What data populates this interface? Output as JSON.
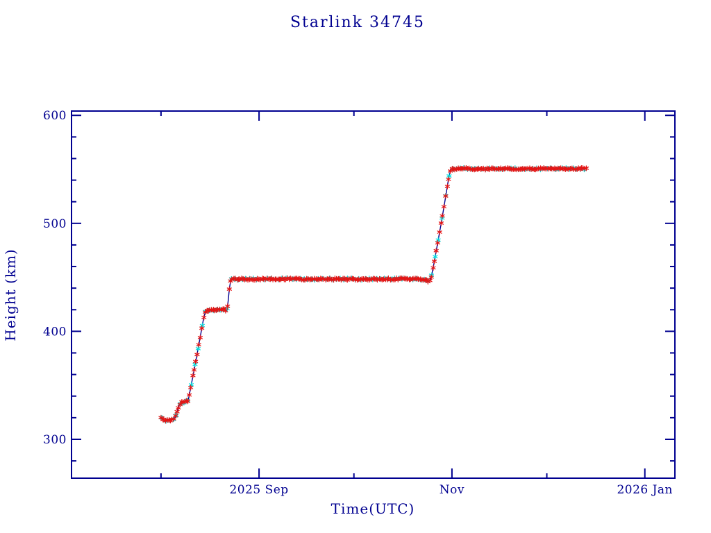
{
  "chart_data": {
    "type": "scatter",
    "title": "Starlink 34745",
    "xlabel": "Time(UTC)",
    "ylabel": "Height (km)",
    "background": "#ffffff",
    "axis_color": "#000090",
    "text_color": "#000090",
    "line_color": "#000090",
    "grid": "off",
    "legend": "none",
    "time_reference": "days since 2025-08-01",
    "x_axis": {
      "lim_days": [
        -28.3,
        162.5
      ],
      "month_ticks": [
        {
          "day": 0,
          "label": "",
          "major": false
        },
        {
          "day": 31,
          "label": "2025 Sep",
          "major": true
        },
        {
          "day": 61,
          "label": "",
          "major": false
        },
        {
          "day": 92,
          "label": "Nov",
          "major": true
        },
        {
          "day": 122,
          "label": "",
          "major": false
        },
        {
          "day": 153,
          "label": "2026 Jan",
          "major": true
        }
      ]
    },
    "y_axis": {
      "lim_km": [
        264,
        604
      ],
      "major_ticks": [
        300,
        400,
        500,
        600
      ],
      "minor_step_km": 20
    },
    "trajectory_keypoints_day_km": [
      [
        0,
        319.6
      ],
      [
        0.7,
        318.4
      ],
      [
        1.4,
        317.5
      ],
      [
        2.1,
        317.2
      ],
      [
        2.8,
        317.5
      ],
      [
        3.5,
        318.2
      ],
      [
        4.2,
        319.2
      ],
      [
        4.7,
        321.5
      ],
      [
        5.2,
        326.5
      ],
      [
        5.7,
        331.5
      ],
      [
        6.2,
        333.6
      ],
      [
        7.0,
        334.2
      ],
      [
        7.8,
        334.6
      ],
      [
        8.6,
        336.0
      ],
      [
        9.4,
        348.0
      ],
      [
        10.2,
        360.0
      ],
      [
        11.0,
        372.5
      ],
      [
        11.8,
        385.0
      ],
      [
        12.6,
        398.0
      ],
      [
        13.4,
        411.0
      ],
      [
        13.9,
        417.0
      ],
      [
        14.3,
        418.6
      ],
      [
        15.5,
        419.5
      ],
      [
        17.0,
        420.0
      ],
      [
        18.5,
        420.2
      ],
      [
        19.7,
        420.4
      ],
      [
        20.3,
        419.3
      ],
      [
        20.7,
        417.7
      ],
      [
        21.1,
        424.0
      ],
      [
        21.5,
        436.0
      ],
      [
        21.9,
        445.5
      ],
      [
        22.3,
        448.2
      ],
      [
        25,
        448.4
      ],
      [
        32,
        448.3
      ],
      [
        40,
        448.5
      ],
      [
        48,
        448.2
      ],
      [
        56,
        448.4
      ],
      [
        64,
        448.3
      ],
      [
        72,
        448.5
      ],
      [
        78,
        448.4
      ],
      [
        82,
        448.2
      ],
      [
        83.8,
        447.8
      ],
      [
        84.5,
        446.2
      ],
      [
        84.9,
        446.0
      ],
      [
        85.5,
        451.0
      ],
      [
        86.2,
        461.0
      ],
      [
        87.0,
        474.0
      ],
      [
        87.8,
        487.0
      ],
      [
        88.6,
        500.0
      ],
      [
        89.4,
        514.0
      ],
      [
        90.2,
        528.0
      ],
      [
        90.8,
        539.0
      ],
      [
        91.3,
        546.5
      ],
      [
        91.7,
        549.8
      ],
      [
        92.3,
        550.4
      ],
      [
        96,
        550.6
      ],
      [
        102,
        550.3
      ],
      [
        108,
        550.7
      ],
      [
        114,
        550.4
      ],
      [
        120,
        550.6
      ],
      [
        126,
        550.5
      ],
      [
        130,
        550.7
      ],
      [
        134.5,
        550.5
      ]
    ],
    "series": [
      {
        "name": "secondary-height-markers",
        "marker": "asterisk",
        "color": "#00dede",
        "start_day": 0.35,
        "end_day": 134.5,
        "cadence_days": 1.15
      },
      {
        "name": "primary-height-markers",
        "marker": "asterisk",
        "color": "#e41414",
        "start_day": 0.0,
        "end_day": 134.5,
        "cadence_days": 0.5
      }
    ]
  }
}
